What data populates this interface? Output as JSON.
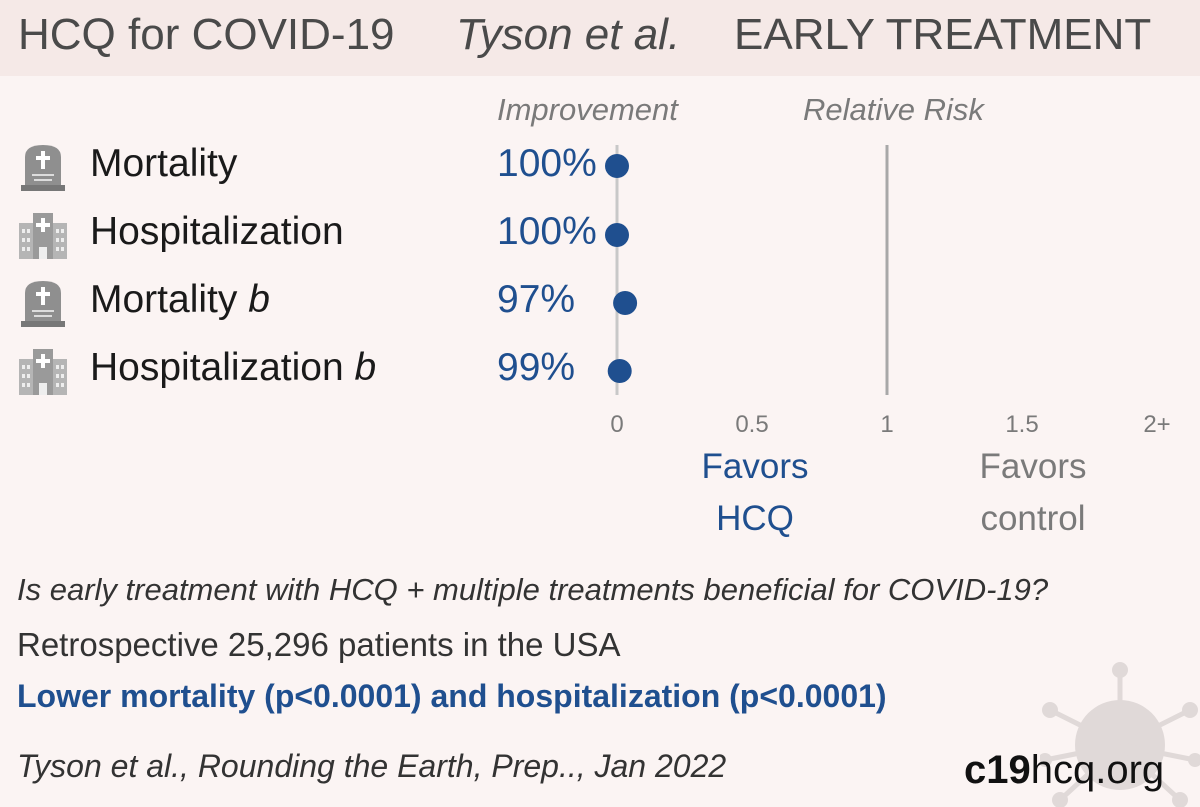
{
  "header": {
    "title": "HCQ for COVID-19",
    "study": "Tyson et al.",
    "stage": "EARLY TREATMENT"
  },
  "columns": {
    "improvement": "Improvement",
    "relative_risk": "Relative Risk"
  },
  "rows": [
    {
      "label": "Mortality",
      "suffix": "",
      "improvement": "100%",
      "icon": "tombstone-icon"
    },
    {
      "label": "Hospitalization",
      "suffix": "",
      "improvement": "100%",
      "icon": "hospital-icon"
    },
    {
      "label": "Mortality ",
      "suffix": "b",
      "improvement": "97%",
      "icon": "tombstone-icon"
    },
    {
      "label": "Hospitalization ",
      "suffix": "b",
      "improvement": "99%",
      "icon": "hospital-icon"
    }
  ],
  "chart_data": {
    "type": "scatter",
    "title": "",
    "xlabel": "Relative Risk",
    "ylabel": "",
    "categories": [
      "Mortality",
      "Hospitalization",
      "Mortality b",
      "Hospitalization b"
    ],
    "values": [
      0.0,
      0.0,
      0.03,
      0.01
    ],
    "xlim": [
      0,
      2
    ],
    "x_ticks": [
      0,
      0.5,
      1,
      1.5,
      2
    ],
    "x_tick_labels": [
      "0",
      "0.5",
      "1",
      "1.5",
      "2+"
    ],
    "reference_line": 1,
    "series_color": "#1f4f8f",
    "favors_left": [
      "Favors",
      "HCQ"
    ],
    "favors_right": [
      "Favors",
      "control"
    ]
  },
  "summary": {
    "question": "Is early treatment with HCQ + multiple treatments beneficial for COVID-19?",
    "design": "Retrospective 25,296 patients in the USA",
    "conclusion": "Lower mortality (p<0.0001) and hospitalization (p<0.0001)"
  },
  "footer": {
    "citation": "Tyson et al., Rounding the Earth, Prep.., Jan 2022",
    "brand_bold": "c19",
    "brand_light": "hcq.org"
  },
  "colors": {
    "accent": "#1f4f8f",
    "background": "#fbf4f3",
    "header_bg": "#f5e9e7",
    "muted": "#7a7a7a"
  }
}
